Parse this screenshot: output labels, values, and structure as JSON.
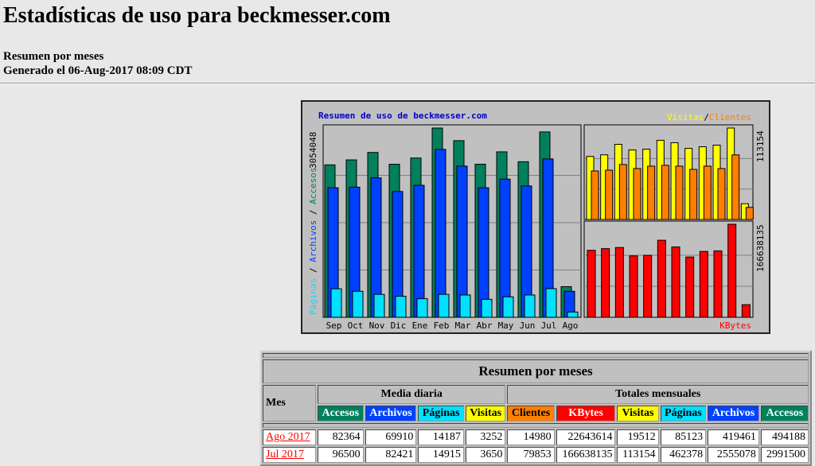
{
  "header": {
    "title": "Estadísticas de uso para beckmesser.com",
    "summary_period": "Resumen por meses",
    "generated": "Generado el 06-Aug-2017 08:09 CDT"
  },
  "chart": {
    "title": "Resumen de uso de beckmesser.com",
    "legend_left_parts": [
      "Páginas",
      "Archivos",
      "Accesos"
    ],
    "legend_left_sep": " / ",
    "legend_right_visitas": "Visitas",
    "legend_right_sep": "/",
    "legend_right_clientes": "Clientes",
    "legend_kbytes": "KBytes",
    "max_left": "3054048",
    "max_right_top": "113154",
    "max_right_bottom": "166638135",
    "colors": {
      "accesos": "#00805c",
      "archivos": "#0040ff",
      "paginas": "#00e0ff",
      "visitas": "#ffff00",
      "clientes": "#ff8000",
      "kbytes": "#ff0000"
    }
  },
  "chart_data": {
    "type": "bar",
    "categories": [
      "Sep",
      "Oct",
      "Nov",
      "Dic",
      "Ene",
      "Feb",
      "Mar",
      "Abr",
      "May",
      "Jun",
      "Jul",
      "Ago"
    ],
    "series": [
      {
        "name": "Accesos",
        "values": [
          2460000,
          2540000,
          2660000,
          2470000,
          2570000,
          3054048,
          2850000,
          2470000,
          2670000,
          2510000,
          2991500,
          494188
        ]
      },
      {
        "name": "Archivos",
        "values": [
          2090000,
          2100000,
          2250000,
          2030000,
          2130000,
          2710000,
          2440000,
          2090000,
          2230000,
          2120000,
          2555078,
          419461
        ]
      },
      {
        "name": "Páginas",
        "values": [
          460000,
          420000,
          370000,
          340000,
          300000,
          370000,
          360000,
          290000,
          330000,
          360000,
          462378,
          85123
        ]
      },
      {
        "name": "Visitas",
        "values": [
          78000,
          80000,
          93000,
          86000,
          87000,
          98000,
          95000,
          88000,
          90000,
          92000,
          113154,
          19512
        ]
      },
      {
        "name": "Clientes",
        "values": [
          60000,
          61000,
          68000,
          63000,
          66000,
          67000,
          66000,
          62000,
          66000,
          63000,
          79853,
          14980
        ]
      },
      {
        "name": "KBytes",
        "values": [
          120000000,
          123000000,
          125000000,
          110000000,
          111000000,
          138000000,
          126000000,
          108000000,
          118000000,
          119000000,
          166638135,
          22643614
        ]
      }
    ]
  },
  "table": {
    "title": "Resumen por meses",
    "mes_label": "Mes",
    "group_daily": "Media diaria",
    "group_monthly": "Totales mensuales",
    "daily_headers": [
      "Accesos",
      "Archivos",
      "Páginas",
      "Visitas"
    ],
    "monthly_headers": [
      "Clientes",
      "KBytes",
      "Visitas",
      "Páginas",
      "Archivos",
      "Accesos"
    ],
    "rows": [
      {
        "month": "Ago 2017",
        "daily": [
          "82364",
          "69910",
          "14187",
          "3252"
        ],
        "monthly": [
          "14980",
          "22643614",
          "19512",
          "85123",
          "419461",
          "494188"
        ]
      },
      {
        "month": "Jul 2017",
        "daily": [
          "96500",
          "82421",
          "14915",
          "3650"
        ],
        "monthly": [
          "79853",
          "166638135",
          "113154",
          "462378",
          "2555078",
          "2991500"
        ]
      }
    ]
  }
}
